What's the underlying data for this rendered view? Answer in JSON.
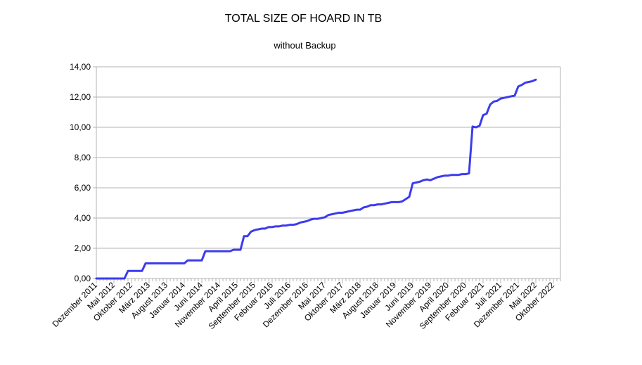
{
  "chart_data": {
    "type": "line",
    "title": "TOTAL SIZE OF HOARD IN TB",
    "subtitle": "without Backup",
    "xlabel": "",
    "ylabel": "",
    "ylim": [
      0,
      14
    ],
    "y_ticks": [
      "0,00",
      "2,00",
      "4,00",
      "6,00",
      "8,00",
      "10,00",
      "12,00",
      "14,00"
    ],
    "y_tick_values": [
      0,
      2,
      4,
      6,
      8,
      10,
      12,
      14
    ],
    "x_start": "2011-12",
    "x_end": "2022-12",
    "x_tick_labels": [
      {
        "label": "Dezember 2011",
        "date": "2011-12"
      },
      {
        "label": "Mai 2012",
        "date": "2012-05"
      },
      {
        "label": "Oktober 2012",
        "date": "2012-10"
      },
      {
        "label": "März 2013",
        "date": "2013-03"
      },
      {
        "label": "August 2013",
        "date": "2013-08"
      },
      {
        "label": "Januar 2014",
        "date": "2014-01"
      },
      {
        "label": "Juni 2014",
        "date": "2014-06"
      },
      {
        "label": "November 2014",
        "date": "2014-11"
      },
      {
        "label": "April 2015",
        "date": "2015-04"
      },
      {
        "label": "September 2015",
        "date": "2015-09"
      },
      {
        "label": "Februar 2016",
        "date": "2016-02"
      },
      {
        "label": "Juli 2016",
        "date": "2016-07"
      },
      {
        "label": "Dezember 2016",
        "date": "2016-12"
      },
      {
        "label": "Mai 2017",
        "date": "2017-05"
      },
      {
        "label": "Oktober 2017",
        "date": "2017-10"
      },
      {
        "label": "März 2018",
        "date": "2018-03"
      },
      {
        "label": "August 2018",
        "date": "2018-08"
      },
      {
        "label": "Januar 2019",
        "date": "2019-01"
      },
      {
        "label": "Juni 2019",
        "date": "2019-06"
      },
      {
        "label": "November 2019",
        "date": "2019-11"
      },
      {
        "label": "April 2020",
        "date": "2020-04"
      },
      {
        "label": "September 2020",
        "date": "2020-09"
      },
      {
        "label": "Februar 2021",
        "date": "2021-02"
      },
      {
        "label": "Juli 2021",
        "date": "2021-07"
      },
      {
        "label": "Dezember 2021",
        "date": "2021-12"
      },
      {
        "label": "Mai 2022",
        "date": "2022-05"
      },
      {
        "label": "Oktober 2022",
        "date": "2022-10"
      }
    ],
    "grid": true,
    "legend": "none",
    "line_color": "#3b3bef",
    "series": [
      {
        "points": [
          [
            "2011-12",
            0
          ],
          [
            "2012-01",
            0
          ],
          [
            "2012-02",
            0
          ],
          [
            "2012-03",
            0
          ],
          [
            "2012-04",
            0
          ],
          [
            "2012-05",
            0
          ],
          [
            "2012-06",
            0
          ],
          [
            "2012-07",
            0
          ],
          [
            "2012-08",
            0
          ],
          [
            "2012-09",
            0.5
          ],
          [
            "2012-10",
            0.5
          ],
          [
            "2012-11",
            0.5
          ],
          [
            "2012-12",
            0.5
          ],
          [
            "2013-01",
            0.5
          ],
          [
            "2013-02",
            1.0
          ],
          [
            "2013-03",
            1.0
          ],
          [
            "2013-04",
            1.0
          ],
          [
            "2013-05",
            1.0
          ],
          [
            "2013-06",
            1.0
          ],
          [
            "2013-07",
            1.0
          ],
          [
            "2013-08",
            1.0
          ],
          [
            "2013-09",
            1.0
          ],
          [
            "2013-10",
            1.0
          ],
          [
            "2013-11",
            1.0
          ],
          [
            "2013-12",
            1.0
          ],
          [
            "2014-01",
            1.0
          ],
          [
            "2014-02",
            1.2
          ],
          [
            "2014-03",
            1.2
          ],
          [
            "2014-04",
            1.2
          ],
          [
            "2014-05",
            1.2
          ],
          [
            "2014-06",
            1.2
          ],
          [
            "2014-07",
            1.8
          ],
          [
            "2014-08",
            1.8
          ],
          [
            "2014-09",
            1.8
          ],
          [
            "2014-10",
            1.8
          ],
          [
            "2014-11",
            1.8
          ],
          [
            "2014-12",
            1.8
          ],
          [
            "2015-01",
            1.8
          ],
          [
            "2015-02",
            1.8
          ],
          [
            "2015-03",
            1.9
          ],
          [
            "2015-04",
            1.9
          ],
          [
            "2015-05",
            1.9
          ],
          [
            "2015-06",
            2.8
          ],
          [
            "2015-07",
            2.8
          ],
          [
            "2015-08",
            3.1
          ],
          [
            "2015-09",
            3.2
          ],
          [
            "2015-10",
            3.25
          ],
          [
            "2015-11",
            3.3
          ],
          [
            "2015-12",
            3.3
          ],
          [
            "2016-01",
            3.4
          ],
          [
            "2016-02",
            3.4
          ],
          [
            "2016-03",
            3.45
          ],
          [
            "2016-04",
            3.45
          ],
          [
            "2016-05",
            3.5
          ],
          [
            "2016-06",
            3.5
          ],
          [
            "2016-07",
            3.55
          ],
          [
            "2016-08",
            3.55
          ],
          [
            "2016-09",
            3.6
          ],
          [
            "2016-10",
            3.7
          ],
          [
            "2016-11",
            3.75
          ],
          [
            "2016-12",
            3.8
          ],
          [
            "2017-01",
            3.9
          ],
          [
            "2017-02",
            3.95
          ],
          [
            "2017-03",
            3.95
          ],
          [
            "2017-04",
            4.0
          ],
          [
            "2017-05",
            4.05
          ],
          [
            "2017-06",
            4.2
          ],
          [
            "2017-07",
            4.25
          ],
          [
            "2017-08",
            4.3
          ],
          [
            "2017-09",
            4.35
          ],
          [
            "2017-10",
            4.35
          ],
          [
            "2017-11",
            4.4
          ],
          [
            "2017-12",
            4.45
          ],
          [
            "2018-01",
            4.5
          ],
          [
            "2018-02",
            4.55
          ],
          [
            "2018-03",
            4.55
          ],
          [
            "2018-04",
            4.7
          ],
          [
            "2018-05",
            4.75
          ],
          [
            "2018-06",
            4.85
          ],
          [
            "2018-07",
            4.85
          ],
          [
            "2018-08",
            4.9
          ],
          [
            "2018-09",
            4.9
          ],
          [
            "2018-10",
            4.95
          ],
          [
            "2018-11",
            5.0
          ],
          [
            "2018-12",
            5.05
          ],
          [
            "2019-01",
            5.05
          ],
          [
            "2019-02",
            5.05
          ],
          [
            "2019-03",
            5.1
          ],
          [
            "2019-04",
            5.25
          ],
          [
            "2019-05",
            5.4
          ],
          [
            "2019-06",
            6.3
          ],
          [
            "2019-07",
            6.35
          ],
          [
            "2019-08",
            6.4
          ],
          [
            "2019-09",
            6.5
          ],
          [
            "2019-10",
            6.55
          ],
          [
            "2019-11",
            6.5
          ],
          [
            "2019-12",
            6.6
          ],
          [
            "2020-01",
            6.7
          ],
          [
            "2020-02",
            6.75
          ],
          [
            "2020-03",
            6.8
          ],
          [
            "2020-04",
            6.8
          ],
          [
            "2020-05",
            6.85
          ],
          [
            "2020-06",
            6.85
          ],
          [
            "2020-07",
            6.85
          ],
          [
            "2020-08",
            6.9
          ],
          [
            "2020-09",
            6.9
          ],
          [
            "2020-10",
            6.95
          ],
          [
            "2020-11",
            10.05
          ],
          [
            "2020-12",
            10.0
          ],
          [
            "2021-01",
            10.1
          ],
          [
            "2021-02",
            10.8
          ],
          [
            "2021-03",
            10.9
          ],
          [
            "2021-04",
            11.5
          ],
          [
            "2021-05",
            11.7
          ],
          [
            "2021-06",
            11.75
          ],
          [
            "2021-07",
            11.9
          ],
          [
            "2021-08",
            11.95
          ],
          [
            "2021-09",
            12.0
          ],
          [
            "2021-10",
            12.05
          ],
          [
            "2021-11",
            12.1
          ],
          [
            "2021-12",
            12.7
          ],
          [
            "2022-01",
            12.8
          ],
          [
            "2022-02",
            12.95
          ],
          [
            "2022-03",
            13.0
          ],
          [
            "2022-04",
            13.05
          ],
          [
            "2022-05",
            13.15
          ]
        ]
      }
    ]
  }
}
